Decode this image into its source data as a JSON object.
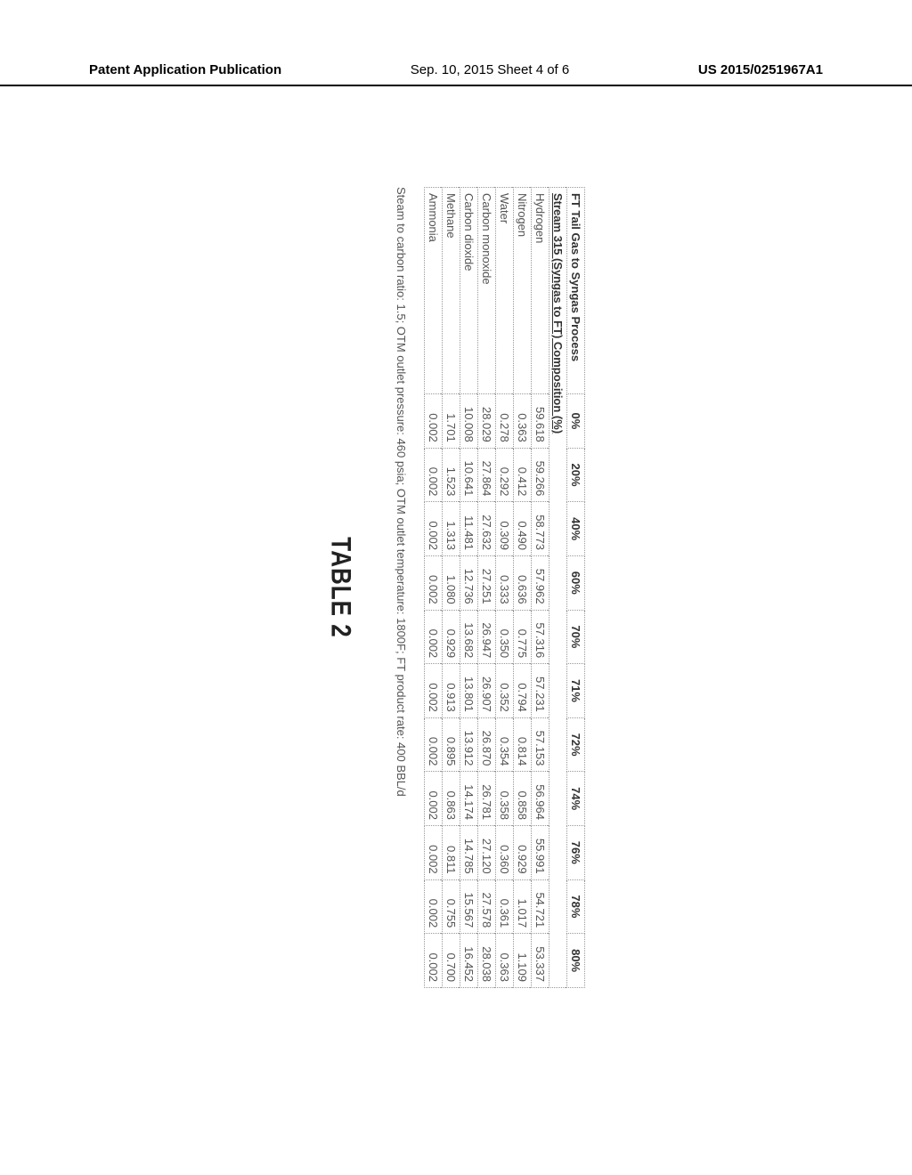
{
  "header": {
    "left": "Patent Application Publication",
    "center": "Sep. 10, 2015  Sheet 4 of 6",
    "right": "US 2015/0251967A1"
  },
  "table": {
    "type": "table",
    "background_color": "#ffffff",
    "border_color": "#999999",
    "font_size": 13,
    "header_row_label": "FT Tail Gas to Syngas Process",
    "columns": [
      "0%",
      "20%",
      "40%",
      "60%",
      "70%",
      "71%",
      "72%",
      "74%",
      "76%",
      "78%",
      "80%"
    ],
    "subheader": "Stream 315 (Syngas to FT) Composition (%)",
    "rows": [
      {
        "label": "Hydrogen",
        "values": [
          "59.618",
          "59.266",
          "58.773",
          "57.962",
          "57.316",
          "57.231",
          "57.153",
          "56.964",
          "55.991",
          "54.721",
          "53.337"
        ]
      },
      {
        "label": "Nitrogen",
        "values": [
          "0.363",
          "0.412",
          "0.490",
          "0.636",
          "0.775",
          "0.794",
          "0.814",
          "0.858",
          "0.929",
          "1.017",
          "1.109"
        ]
      },
      {
        "label": "Water",
        "values": [
          "0.278",
          "0.292",
          "0.309",
          "0.333",
          "0.350",
          "0.352",
          "0.354",
          "0.358",
          "0.360",
          "0.361",
          "0.363"
        ]
      },
      {
        "label": "Carbon monoxide",
        "values": [
          "28.029",
          "27.864",
          "27.632",
          "27.251",
          "26.947",
          "26.907",
          "26.870",
          "26.781",
          "27.120",
          "27.578",
          "28.038"
        ]
      },
      {
        "label": "Carbon dioxide",
        "values": [
          "10.008",
          "10.641",
          "11.481",
          "12.736",
          "13.682",
          "13.801",
          "13.912",
          "14.174",
          "14.785",
          "15.567",
          "16.452"
        ]
      },
      {
        "label": "Methane",
        "values": [
          "1.701",
          "1.523",
          "1.313",
          "1.080",
          "0.929",
          "0.913",
          "0.895",
          "0.863",
          "0.811",
          "0.755",
          "0.700"
        ]
      },
      {
        "label": "Ammonia",
        "values": [
          "0.002",
          "0.002",
          "0.002",
          "0.002",
          "0.002",
          "0.002",
          "0.002",
          "0.002",
          "0.002",
          "0.002",
          "0.002"
        ]
      }
    ]
  },
  "footnote": "Steam to carbon ratio: 1.5; OTM outlet pressure: 460 psia; OTM outlet temperature: 1800F; FT product rate: 400 BBL/d",
  "caption": "TABLE 2"
}
